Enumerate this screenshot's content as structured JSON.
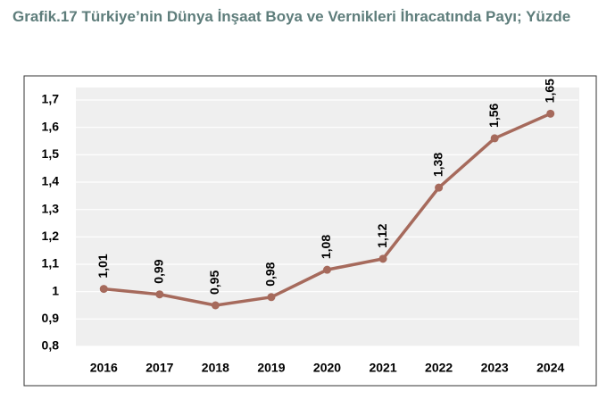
{
  "chart_data": {
    "type": "line",
    "title": "Grafik.17 Türkiye’nin Dünya İnşaat Boya ve Vernikleri İhracatında Payı; Yüzde",
    "categories": [
      "2016",
      "2017",
      "2018",
      "2019",
      "2020",
      "2021",
      "2022",
      "2023",
      "2024"
    ],
    "values": [
      1.01,
      0.99,
      0.95,
      0.98,
      1.08,
      1.12,
      1.38,
      1.56,
      1.65
    ],
    "value_labels": [
      "1,01",
      "0,99",
      "0,95",
      "0,98",
      "1,08",
      "1,12",
      "1,38",
      "1,56",
      "1,65"
    ],
    "color": "#a66a5c",
    "ylim": [
      0.8,
      1.7
    ],
    "yticks": [
      {
        "value": 0.8,
        "label": "0,8"
      },
      {
        "value": 0.9,
        "label": "0,9"
      },
      1,
      {
        "value": 1.1,
        "label": "1,1"
      },
      {
        "value": 1.2,
        "label": "1,2"
      },
      {
        "value": 1.3,
        "label": "1,3"
      },
      {
        "value": 1.4,
        "label": "1,4"
      },
      {
        "value": 1.5,
        "label": "1,5"
      },
      {
        "value": 1.6,
        "label": "1,6"
      },
      {
        "value": 1.7,
        "label": "1,7"
      }
    ],
    "grid": true
  }
}
